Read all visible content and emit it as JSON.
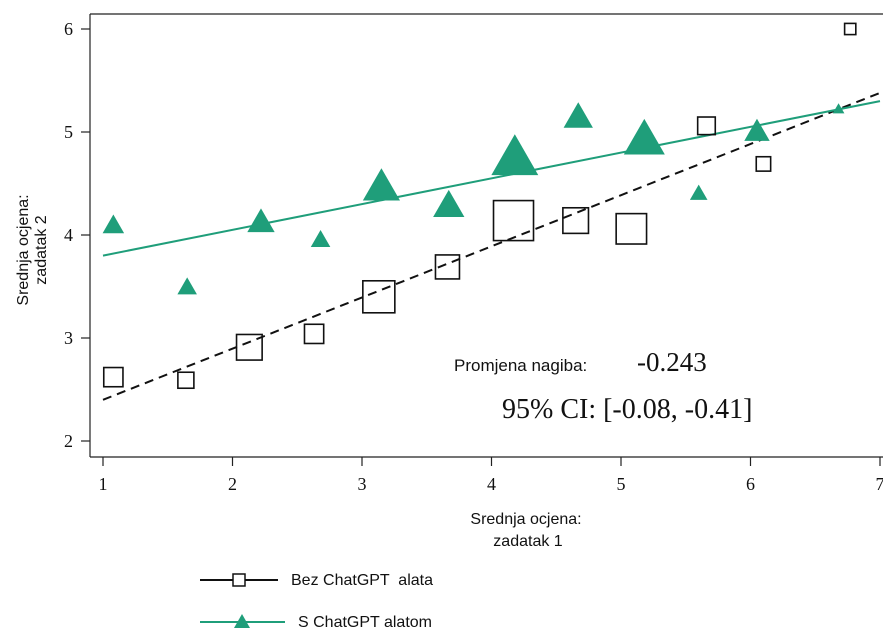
{
  "chart_data": {
    "type": "scatter",
    "xlabel": [
      "Srednja ocjena:",
      "zadatak 1"
    ],
    "ylabel": [
      "Srednja ocjena:",
      "zadatak 2"
    ],
    "xlim": [
      1,
      7
    ],
    "ylim": [
      2,
      6
    ],
    "xticks": [
      "1",
      "2",
      "3",
      "4",
      "5",
      "6",
      "7"
    ],
    "yticks": [
      "2",
      "3",
      "4",
      "5",
      "6"
    ],
    "grid": false,
    "legend_position": "bottom-left",
    "annotation": {
      "label": "Promjena nagiba:",
      "value": "-0.243",
      "ci": "95% CI: [-0.08, -0.41]"
    },
    "series": [
      {
        "name": "Bez ChatGPT  alata",
        "marker": "square-open",
        "color": "#111111",
        "fit_line": {
          "style": "dashed",
          "from": [
            1.0,
            2.4
          ],
          "to": [
            7.0,
            5.38
          ]
        },
        "points": [
          {
            "x": 1.08,
            "y": 2.62,
            "size": 1.2
          },
          {
            "x": 1.64,
            "y": 2.59,
            "size": 1.0
          },
          {
            "x": 2.13,
            "y": 2.91,
            "size": 1.6
          },
          {
            "x": 2.63,
            "y": 3.04,
            "size": 1.2
          },
          {
            "x": 3.13,
            "y": 3.4,
            "size": 2.0
          },
          {
            "x": 3.66,
            "y": 3.69,
            "size": 1.5
          },
          {
            "x": 4.17,
            "y": 4.14,
            "size": 2.5
          },
          {
            "x": 4.65,
            "y": 4.14,
            "size": 1.6
          },
          {
            "x": 5.08,
            "y": 4.06,
            "size": 1.9
          },
          {
            "x": 5.66,
            "y": 5.06,
            "size": 1.1
          },
          {
            "x": 6.1,
            "y": 4.69,
            "size": 0.9
          },
          {
            "x": 6.77,
            "y": 6.0,
            "size": 0.7
          }
        ]
      },
      {
        "name": "S ChatGPT alatom",
        "marker": "triangle-filled",
        "color": "#1f9e7a",
        "fit_line": {
          "style": "solid",
          "from": [
            1.0,
            3.8
          ],
          "to": [
            7.0,
            5.3
          ]
        },
        "points": [
          {
            "x": 1.08,
            "y": 4.09,
            "size": 1.1
          },
          {
            "x": 1.65,
            "y": 3.49,
            "size": 1.0
          },
          {
            "x": 2.22,
            "y": 4.12,
            "size": 1.4
          },
          {
            "x": 2.68,
            "y": 3.95,
            "size": 1.0
          },
          {
            "x": 3.15,
            "y": 4.46,
            "size": 1.9
          },
          {
            "x": 3.67,
            "y": 4.28,
            "size": 1.6
          },
          {
            "x": 4.18,
            "y": 4.74,
            "size": 2.4
          },
          {
            "x": 4.67,
            "y": 5.14,
            "size": 1.5
          },
          {
            "x": 5.18,
            "y": 4.92,
            "size": 2.1
          },
          {
            "x": 5.6,
            "y": 4.4,
            "size": 0.9
          },
          {
            "x": 6.05,
            "y": 5.0,
            "size": 1.3
          },
          {
            "x": 6.68,
            "y": 5.22,
            "size": 0.6
          }
        ]
      }
    ]
  }
}
